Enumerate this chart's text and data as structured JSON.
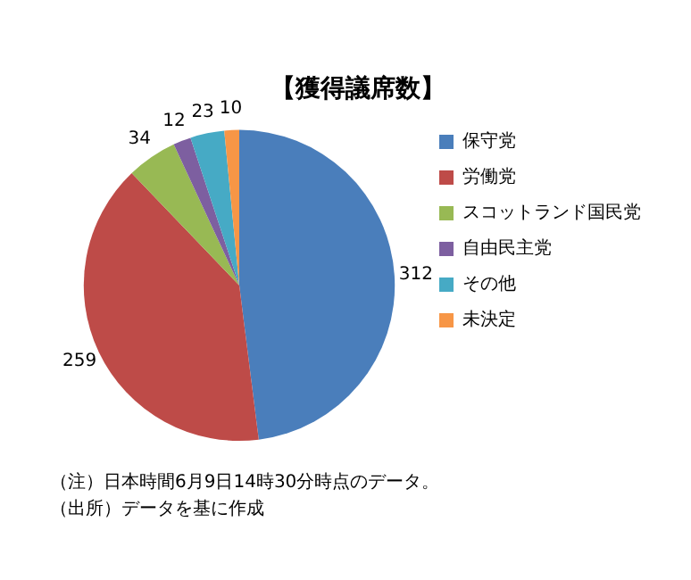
{
  "chart_data": {
    "type": "pie",
    "title": "【獲得議席数】",
    "categories": [
      "保守党",
      "労働党",
      "スコットランド国民党",
      "自由民主党",
      "その他",
      "未決定"
    ],
    "values": [
      312,
      259,
      34,
      12,
      23,
      10
    ],
    "colors": [
      "#4a7ebb",
      "#be4b48",
      "#98b954",
      "#7d5fa0",
      "#46aac5",
      "#f79646"
    ],
    "data_labels": true,
    "legend": "right",
    "annotations": [
      "（注）日本時間6月9日14時30分時点のデータ。",
      "（出所）データを基に作成"
    ]
  }
}
